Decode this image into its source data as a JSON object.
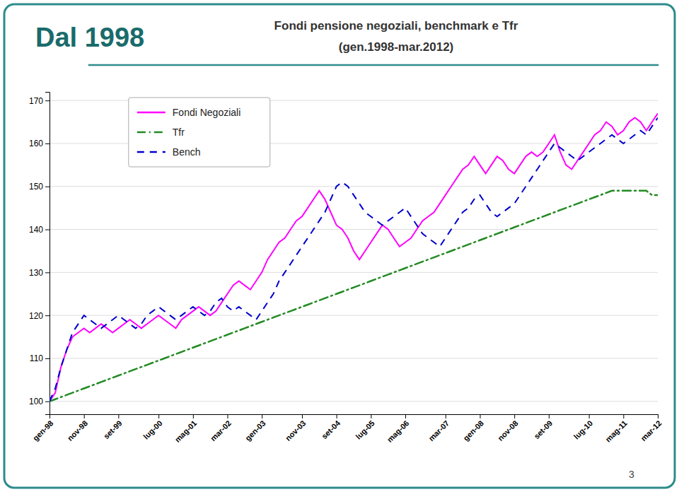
{
  "chart_data": {
    "type": "line",
    "title": "Dal 1998",
    "subtitle": [
      "Fondi pensione negoziali, benchmark e Tfr",
      "(gen.1998-mar.2012)"
    ],
    "annotations": [
      "3"
    ],
    "categories": [
      "gen-98",
      null,
      null,
      null,
      null,
      null,
      "nov-98",
      null,
      null,
      null,
      null,
      null,
      "set-99",
      null,
      null,
      null,
      null,
      null,
      null,
      "lug-00",
      null,
      null,
      null,
      null,
      null,
      "mag-01",
      null,
      null,
      null,
      null,
      null,
      "mar-02",
      null,
      null,
      null,
      null,
      null,
      "gen-03",
      null,
      null,
      null,
      null,
      null,
      null,
      "nov-03",
      null,
      null,
      null,
      null,
      null,
      "set-04",
      null,
      null,
      null,
      null,
      null,
      "lug-05",
      null,
      null,
      null,
      null,
      null,
      "mag-06",
      null,
      null,
      null,
      null,
      null,
      null,
      "mar-07",
      null,
      null,
      null,
      null,
      null,
      "gen-08",
      null,
      null,
      null,
      null,
      null,
      "nov-08",
      null,
      null,
      null,
      null,
      null,
      "set-09",
      null,
      null,
      null,
      null,
      null,
      null,
      "lug-10",
      null,
      null,
      null,
      null,
      null,
      "mag-11",
      null,
      null,
      null,
      null,
      null,
      "mar-12"
    ],
    "series": [
      {
        "name": "Fondi Negoziali",
        "color": "#ff00ff",
        "line_style": "solid",
        "values": [
          100,
          102,
          108,
          112,
          115,
          116,
          117,
          116,
          117,
          118,
          117,
          116,
          117,
          118,
          119,
          118,
          117,
          118,
          119,
          120,
          119,
          118,
          117,
          119,
          120,
          121,
          122,
          121,
          120,
          121,
          123,
          125,
          127,
          128,
          127,
          126,
          128,
          130,
          133,
          135,
          137,
          138,
          140,
          142,
          143,
          145,
          147,
          149,
          147,
          144,
          141,
          140,
          138,
          135,
          133,
          135,
          137,
          139,
          141,
          140,
          138,
          136,
          137,
          138,
          140,
          142,
          143,
          144,
          146,
          148,
          150,
          152,
          154,
          155,
          157,
          155,
          153,
          155,
          157,
          156,
          154,
          153,
          155,
          157,
          158,
          157,
          158,
          160,
          162,
          158,
          155,
          154,
          156,
          158,
          160,
          162,
          163,
          165,
          164,
          162,
          163,
          165,
          166,
          165,
          163,
          165,
          167
        ]
      },
      {
        "name": "Tfr",
        "color": "#228B22",
        "line_style": "dashdot",
        "values": [
          100,
          100.5,
          101,
          101.5,
          102,
          102.5,
          103,
          103.5,
          104,
          104.5,
          105,
          105.5,
          106,
          106.5,
          107,
          107.5,
          108,
          108.5,
          109,
          109.5,
          110,
          110.5,
          111,
          111.5,
          112,
          112.5,
          113,
          113.5,
          114,
          114.5,
          115,
          115.5,
          116,
          116.5,
          117,
          117.5,
          118,
          118.5,
          119,
          119.5,
          120,
          120.5,
          121,
          121.5,
          122,
          122.5,
          123,
          123.5,
          124,
          124.5,
          125,
          125.5,
          126,
          126.5,
          127,
          127.5,
          128,
          128.5,
          129,
          129.5,
          130,
          130.5,
          131,
          131.5,
          132,
          132.5,
          133,
          133.5,
          134,
          134.5,
          135,
          135.5,
          136,
          136.5,
          137,
          137.5,
          138,
          138.5,
          139,
          139.5,
          140,
          140.5,
          141,
          141.5,
          142,
          142.5,
          143,
          143.5,
          144,
          144.5,
          145,
          145.5,
          146,
          146.5,
          147,
          147.5,
          148,
          148.5,
          149,
          149,
          149,
          149,
          149,
          149,
          149,
          148,
          148
        ]
      },
      {
        "name": "Bench",
        "color": "#0000cd",
        "line_style": "dashed",
        "values": [
          100,
          103,
          108,
          112,
          116,
          118,
          120,
          119,
          118,
          117,
          118,
          119,
          120,
          119,
          118,
          117,
          118,
          120,
          121,
          122,
          121,
          120,
          119,
          120,
          121,
          122,
          121,
          120,
          121,
          123,
          124,
          122,
          121,
          122,
          121,
          120,
          119,
          121,
          123,
          125,
          128,
          130,
          132,
          134,
          136,
          138,
          140,
          142,
          144,
          147,
          150,
          151,
          150,
          148,
          146,
          144,
          143,
          142,
          141,
          142,
          143,
          144,
          145,
          143,
          141,
          139,
          138,
          137,
          136,
          138,
          140,
          142,
          144,
          145,
          147,
          148,
          146,
          144,
          143,
          144,
          145,
          146,
          148,
          150,
          152,
          154,
          156,
          158,
          160,
          159,
          158,
          157,
          156,
          157,
          158,
          159,
          160,
          161,
          162,
          161,
          160,
          161,
          162,
          163,
          162,
          164,
          166
        ]
      }
    ],
    "ylim": [
      97,
      172
    ],
    "yticks": [
      100,
      110,
      120,
      130,
      140,
      150,
      160,
      170
    ],
    "grid": true,
    "legend": "top-left"
  }
}
